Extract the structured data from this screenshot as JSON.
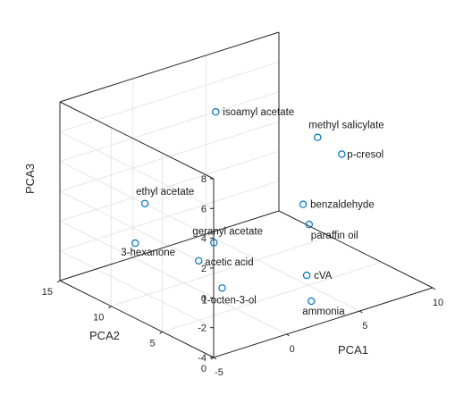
{
  "chart_data": {
    "type": "scatter",
    "title": "",
    "xlabel": "PCA1",
    "ylabel": "PCA2",
    "zlabel": "PCA3",
    "xlim": [
      -5,
      10
    ],
    "ylim": [
      0,
      15
    ],
    "zlim": [
      -4,
      8
    ],
    "xticks": [
      "-5",
      "0",
      "5",
      "10"
    ],
    "yticks": [
      "0",
      "5",
      "10",
      "15"
    ],
    "zticks": [
      "-4",
      "-2",
      "0",
      "2",
      "4",
      "6",
      "8"
    ],
    "grid": true,
    "marker_color": "#0072bd",
    "points": [
      {
        "label": "isoamyl acetate",
        "x": 2.3,
        "y": 10.2,
        "z": 6.7
      },
      {
        "label": "ethyl acetate",
        "x": -3.6,
        "y": 8.7,
        "z": 2.9
      },
      {
        "label": "3-hexanone",
        "x": -3.7,
        "y": 9.5,
        "z": 0.0
      },
      {
        "label": "methyl salicylate",
        "x": 8.3,
        "y": 8.8,
        "z": 3.6
      },
      {
        "label": "p-cresol",
        "x": 8.9,
        "y": 7.3,
        "z": 2.8
      },
      {
        "label": "benzaldehyde",
        "x": 5.2,
        "y": 5.8,
        "z": 1.1
      },
      {
        "label": "paraffin oil",
        "x": 5.4,
        "y": 5.5,
        "z": -0.2
      },
      {
        "label": "geranyl acetate",
        "x": 0.0,
        "y": 7.1,
        "z": -0.3
      },
      {
        "label": "acetic acid",
        "x": -0.9,
        "y": 7.3,
        "z": -1.3
      },
      {
        "label": "1-octen-3-ol",
        "x": -0.7,
        "y": 5.3,
        "z": -2.5
      },
      {
        "label": "cVA",
        "x": 3.9,
        "y": 3.6,
        "z": -2.5
      },
      {
        "label": "ammonia",
        "x": 3.8,
        "y": 3.0,
        "z": -4.0
      }
    ]
  }
}
